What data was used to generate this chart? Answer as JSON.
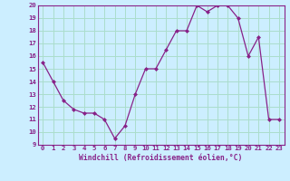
{
  "x": [
    0,
    1,
    2,
    3,
    4,
    5,
    6,
    7,
    8,
    9,
    10,
    11,
    12,
    13,
    14,
    15,
    16,
    17,
    18,
    19,
    20,
    21,
    22,
    23
  ],
  "y": [
    15.5,
    14.0,
    12.5,
    11.8,
    11.5,
    11.5,
    11.0,
    9.5,
    10.5,
    13.0,
    15.0,
    15.0,
    16.5,
    18.0,
    18.0,
    20.0,
    19.5,
    20.0,
    20.0,
    19.0,
    16.0,
    17.5,
    11.0,
    11.0
  ],
  "ylim": [
    9,
    20
  ],
  "yticks": [
    9,
    10,
    11,
    12,
    13,
    14,
    15,
    16,
    17,
    18,
    19,
    20
  ],
  "xticks": [
    0,
    1,
    2,
    3,
    4,
    5,
    6,
    7,
    8,
    9,
    10,
    11,
    12,
    13,
    14,
    15,
    16,
    17,
    18,
    19,
    20,
    21,
    22,
    23
  ],
  "xlabel": "Windchill (Refroidissement éolien,°C)",
  "line_color": "#882288",
  "marker": "D",
  "marker_size": 2.0,
  "bg_color": "#cceeff",
  "grid_color": "#aaddcc",
  "axis_label_color": "#882288",
  "tick_label_color": "#882288",
  "xlim": [
    -0.5,
    23.5
  ]
}
